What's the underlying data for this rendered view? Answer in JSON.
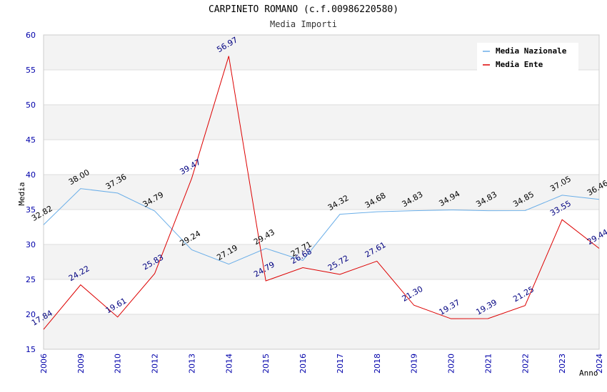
{
  "chart_data": {
    "type": "line",
    "title": "CARPINETO ROMANO (c.f.00986220580)",
    "subtitle": "Media Importi",
    "xlabel": "Anno",
    "ylabel": "Media",
    "ylim": [
      15,
      60
    ],
    "yticks": [
      15,
      20,
      25,
      30,
      35,
      40,
      45,
      50,
      55,
      60
    ],
    "grid": true,
    "legend_position": "top-right",
    "categories": [
      "2006",
      "2009",
      "2010",
      "2012",
      "2013",
      "2014",
      "2015",
      "2016",
      "2017",
      "2018",
      "2019",
      "2020",
      "2021",
      "2022",
      "2023",
      "2024"
    ],
    "series": [
      {
        "name": "Media Nazionale",
        "color": "#6aaee8",
        "label_color": "#000000",
        "values": [
          32.82,
          38.0,
          37.36,
          34.79,
          29.24,
          27.19,
          29.43,
          27.71,
          34.32,
          34.68,
          34.83,
          34.94,
          34.83,
          34.85,
          37.05,
          36.46
        ],
        "labels": [
          "32.82",
          "38.00",
          "37.36",
          "34.79",
          "29.24",
          "27.19",
          "29.43",
          "27.71",
          "34.32",
          "34.68",
          "34.83",
          "34.94",
          "34.83",
          "34.85",
          "37.05",
          "36.46"
        ]
      },
      {
        "name": "Media Ente",
        "color": "#dd0000",
        "label_color": "#000080",
        "values": [
          17.84,
          24.22,
          19.61,
          25.83,
          39.47,
          56.97,
          24.79,
          26.68,
          25.72,
          27.61,
          21.3,
          19.37,
          19.39,
          21.25,
          33.55,
          29.44
        ],
        "labels": [
          "17.84",
          "24.22",
          "19.61",
          "25.83",
          "39.47",
          "56.97",
          "24.79",
          "26.68",
          "25.72",
          "27.61",
          "21.30",
          "19.37",
          "19.39",
          "21.25",
          "33.55",
          "29.44"
        ]
      }
    ]
  }
}
